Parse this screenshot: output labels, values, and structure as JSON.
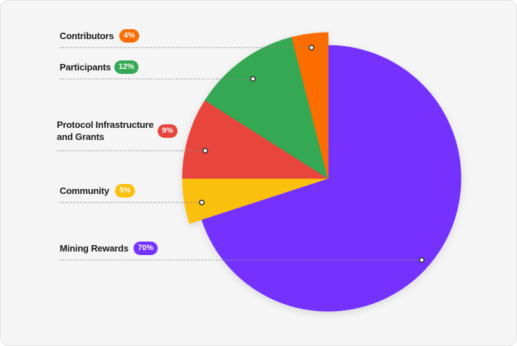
{
  "chart_data": {
    "type": "pie",
    "title": "",
    "slices": [
      {
        "label": "Mining Rewards",
        "pct_label": "70%",
        "value": 70,
        "color": "#7433ff"
      },
      {
        "label": "Community",
        "pct_label": "5%",
        "value": 5,
        "color": "#fbbf0a"
      },
      {
        "label": "Protocol Infrastructure and Grants",
        "label_line1": "Protocol Infrastructure",
        "label_line2": "and Grants",
        "pct_label": "9%",
        "value": 9,
        "color": "#e8453c"
      },
      {
        "label": "Participants",
        "pct_label": "12%",
        "value": 12,
        "color": "#35a853"
      },
      {
        "label": "Contributors",
        "pct_label": "4%",
        "value": 4,
        "color": "#fc6d04"
      }
    ],
    "legend_placement": "left"
  }
}
